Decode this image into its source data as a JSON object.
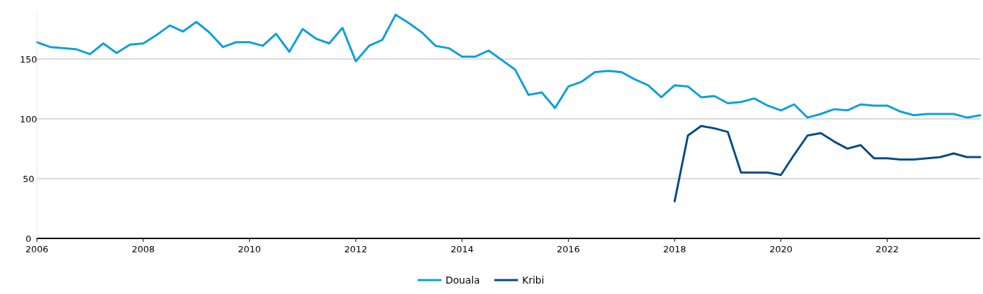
{
  "chart_data": {
    "type": "line",
    "xlim": [
      2006,
      2023.75
    ],
    "xticks": [
      2006,
      2008,
      2010,
      2012,
      2014,
      2016,
      2018,
      2020,
      2022
    ],
    "ylim": [
      0,
      190
    ],
    "yticks": [
      0,
      50,
      100,
      150
    ],
    "grid": "y",
    "legend": "bottom",
    "marker": "none",
    "line_style": "solid",
    "series": [
      {
        "name": "Douala",
        "color": "#0aa0dc",
        "x": [
          2006,
          2006.25,
          2006.5,
          2006.75,
          2007,
          2007.25,
          2007.5,
          2007.75,
          2008,
          2008.25,
          2008.5,
          2008.75,
          2009,
          2009.25,
          2009.5,
          2009.75,
          2010,
          2010.25,
          2010.5,
          2010.75,
          2011,
          2011.25,
          2011.5,
          2011.75,
          2012,
          2012.25,
          2012.5,
          2012.75,
          2013,
          2013.25,
          2013.5,
          2013.75,
          2014,
          2014.25,
          2014.5,
          2014.75,
          2015,
          2015.25,
          2015.5,
          2015.75,
          2016,
          2016.25,
          2016.5,
          2016.75,
          2017,
          2017.25,
          2017.5,
          2017.75,
          2018,
          2018.25,
          2018.5,
          2018.75,
          2019,
          2019.25,
          2019.5,
          2019.75,
          2020,
          2020.25,
          2020.5,
          2020.75,
          2021,
          2021.25,
          2021.5,
          2021.75,
          2022,
          2022.25,
          2022.5,
          2022.75,
          2023,
          2023.25,
          2023.5,
          2023.75
        ],
        "values": [
          164,
          160,
          159,
          158,
          154,
          163,
          155,
          162,
          163,
          170,
          178,
          173,
          181,
          172,
          160,
          164,
          164,
          161,
          171,
          156,
          175,
          167,
          163,
          176,
          148,
          161,
          166,
          187,
          180,
          172,
          161,
          159,
          152,
          152,
          157,
          149,
          141,
          120,
          122,
          109,
          127,
          131,
          139,
          140,
          139,
          133,
          128,
          118,
          128,
          127,
          118,
          119,
          113,
          114,
          117,
          111,
          107,
          112,
          101,
          104,
          108,
          107,
          112,
          111,
          111,
          106,
          103,
          104,
          104,
          104,
          101,
          103
        ]
      },
      {
        "name": "Kribi",
        "color": "#004b87",
        "x": [
          2018,
          2018.25,
          2018.5,
          2018.75,
          2019,
          2019.25,
          2019.5,
          2019.75,
          2020,
          2020.25,
          2020.5,
          2020.75,
          2021,
          2021.25,
          2021.5,
          2021.75,
          2022,
          2022.25,
          2022.5,
          2022.75,
          2023,
          2023.25,
          2023.5,
          2023.75
        ],
        "values": [
          31,
          86,
          94,
          92,
          89,
          55,
          55,
          55,
          53,
          70,
          86,
          88,
          81,
          75,
          78,
          67,
          67,
          66,
          66,
          67,
          68,
          71,
          68,
          68
        ]
      }
    ]
  }
}
